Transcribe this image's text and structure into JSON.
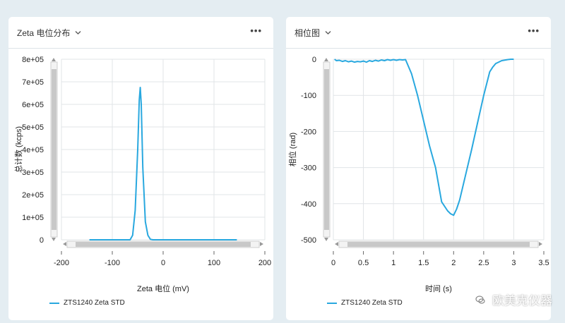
{
  "colors": {
    "series": "#29a8df",
    "background": "#e4edf2",
    "panel": "#ffffff"
  },
  "panels": [
    {
      "title": "Zeta 电位分布",
      "menu_icon": "more-icon",
      "legend": "ZTS1240 Zeta STD"
    },
    {
      "title": "相位图",
      "menu_icon": "more-icon",
      "legend": "ZTS1240 Zeta STD"
    }
  ],
  "watermark": "欧美克仪器",
  "chart_data": [
    {
      "type": "line",
      "xlabel": "Zeta 电位 (mV)",
      "ylabel": "总计数 (kcps)",
      "xlim": [
        -200,
        200
      ],
      "ylim": [
        0,
        800000
      ],
      "x_ticks": [
        "-200",
        "-100",
        "0",
        "100",
        "200"
      ],
      "y_ticks": [
        "0",
        "1e+05",
        "2e+05",
        "3e+05",
        "4e+05",
        "5e+05",
        "6e+05",
        "7e+05",
        "8e+05"
      ],
      "grid": true,
      "legend_position": "bottom-left",
      "series": [
        {
          "name": "ZTS1240 Zeta STD",
          "x": [
            -145,
            -65,
            -60,
            -55,
            -50,
            -47,
            -45,
            -43,
            -40,
            -35,
            -30,
            -25,
            -20,
            145
          ],
          "y": [
            0,
            0,
            20000,
            130000,
            400000,
            620000,
            675000,
            600000,
            320000,
            80000,
            20000,
            2000,
            0,
            0
          ]
        }
      ]
    },
    {
      "type": "line",
      "xlabel": "时间 (s)",
      "ylabel": "相位 (rad)",
      "xlim": [
        0,
        3.5
      ],
      "ylim": [
        -500,
        0
      ],
      "x_ticks": [
        "0",
        "0.5",
        "1",
        "1.5",
        "2",
        "2.5",
        "3",
        "3.5"
      ],
      "y_ticks": [
        "0",
        "-100",
        "-200",
        "-300",
        "-400",
        "-500"
      ],
      "grid": true,
      "legend_position": "bottom-left",
      "series": [
        {
          "name": "ZTS1240 Zeta STD",
          "x": [
            0.02,
            0.05,
            0.1,
            0.15,
            0.2,
            0.25,
            0.3,
            0.35,
            0.4,
            0.45,
            0.5,
            0.55,
            0.6,
            0.65,
            0.7,
            0.75,
            0.8,
            0.85,
            0.9,
            0.95,
            1.0,
            1.05,
            1.1,
            1.15,
            1.2,
            1.3,
            1.4,
            1.5,
            1.6,
            1.7,
            1.8,
            1.9,
            1.95,
            2.0,
            2.05,
            2.1,
            2.2,
            2.3,
            2.4,
            2.5,
            2.6,
            2.65,
            2.7,
            2.8,
            2.9,
            2.95,
            3.0
          ],
          "y": [
            0,
            -4,
            -3,
            -6,
            -4,
            -7,
            -5,
            -8,
            -6,
            -7,
            -5,
            -8,
            -4,
            -6,
            -3,
            -5,
            -2,
            -4,
            -1,
            -3,
            -1,
            -3,
            -1,
            -2,
            -1,
            -40,
            -100,
            -170,
            -240,
            -300,
            -395,
            -420,
            -428,
            -432,
            -415,
            -390,
            -320,
            -250,
            -175,
            -100,
            -35,
            -22,
            -12,
            -4,
            -1,
            0,
            0
          ]
        }
      ]
    }
  ]
}
